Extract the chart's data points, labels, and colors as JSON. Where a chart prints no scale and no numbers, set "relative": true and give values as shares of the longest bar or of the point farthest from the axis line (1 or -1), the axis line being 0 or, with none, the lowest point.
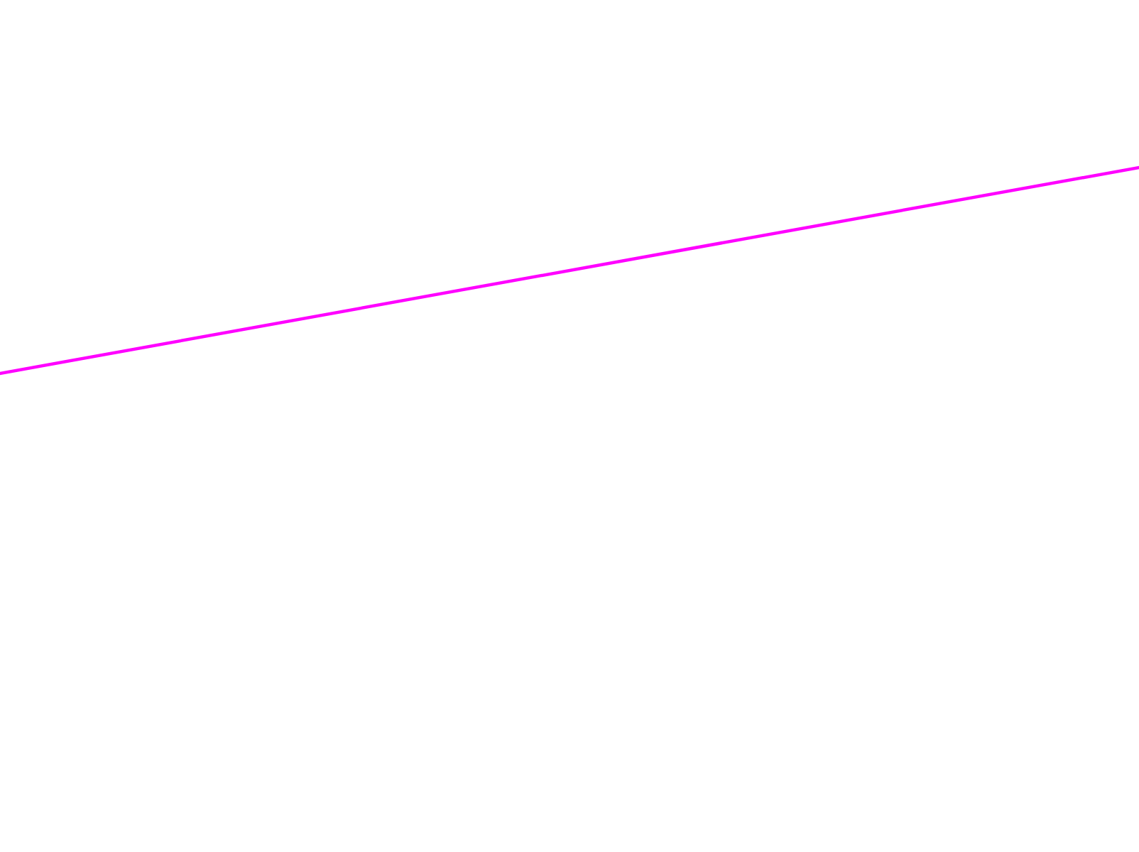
{
  "chart_data": {
    "type": "line",
    "relative": true,
    "categories": [
      null,
      null
    ],
    "series": [
      {
        "color": "#ff00ff",
        "values": [
          0,
          1
        ]
      }
    ]
  }
}
